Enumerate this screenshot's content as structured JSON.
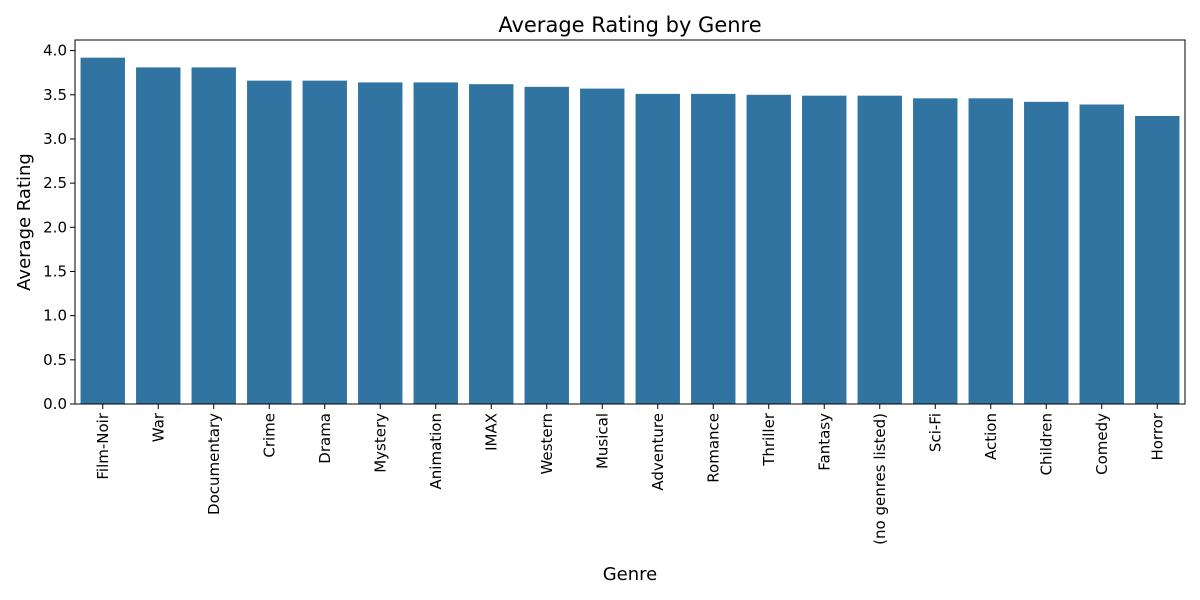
{
  "chart_data": {
    "type": "bar",
    "title": "Average Rating by Genre",
    "xlabel": "Genre",
    "ylabel": "Average Rating",
    "categories": [
      "Film-Noir",
      "War",
      "Documentary",
      "Crime",
      "Drama",
      "Mystery",
      "Animation",
      "IMAX",
      "Western",
      "Musical",
      "Adventure",
      "Romance",
      "Thriller",
      "Fantasy",
      "(no genres listed)",
      "Sci-Fi",
      "Action",
      "Children",
      "Comedy",
      "Horror"
    ],
    "values": [
      3.92,
      3.81,
      3.81,
      3.66,
      3.66,
      3.64,
      3.64,
      3.62,
      3.59,
      3.57,
      3.51,
      3.51,
      3.5,
      3.49,
      3.49,
      3.46,
      3.46,
      3.42,
      3.39,
      3.26
    ],
    "yticks": [
      "0.0",
      "0.5",
      "1.0",
      "1.5",
      "2.0",
      "2.5",
      "3.0",
      "3.5",
      "4.0"
    ],
    "ylim": [
      0,
      4.12
    ],
    "grid": false,
    "legend": "none",
    "bar_color": "#3274a1"
  }
}
